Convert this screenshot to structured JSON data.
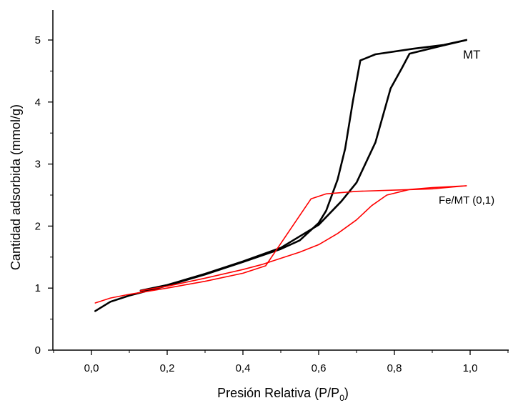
{
  "chart_data": {
    "type": "line",
    "xlabel_main": "Presión Relativa (P/P",
    "xlabel_sub": "0",
    "xlabel_close": ")",
    "ylabel": "Cantidad adsorbida (mmol/g)",
    "xlim": [
      -0.1,
      1.1
    ],
    "ylim": [
      0,
      5.5
    ],
    "x_ticks": [
      0.0,
      0.2,
      0.4,
      0.6,
      0.8,
      1.0
    ],
    "x_tick_labels": [
      "0,0",
      "0,2",
      "0,4",
      "0,6",
      "0,8",
      "1,0"
    ],
    "y_ticks": [
      0,
      1,
      2,
      3,
      4,
      5
    ],
    "y_tick_labels": [
      "0",
      "1",
      "2",
      "3",
      "4",
      "5"
    ],
    "grid": false,
    "series": [
      {
        "name": "MT",
        "color": "#000000",
        "segments": [
          {
            "x": [
              0.01,
              0.05,
              0.1,
              0.2,
              0.3,
              0.4,
              0.5,
              0.55,
              0.6,
              0.62,
              0.65,
              0.67,
              0.69,
              0.71,
              0.75,
              0.85,
              0.93,
              0.99
            ],
            "y": [
              0.63,
              0.78,
              0.88,
              1.04,
              1.22,
              1.42,
              1.63,
              1.77,
              2.05,
              2.25,
              2.75,
              3.25,
              4.0,
              4.67,
              4.77,
              4.86,
              4.92,
              5.0
            ]
          },
          {
            "x": [
              0.99,
              0.92,
              0.84,
              0.82,
              0.79,
              0.75,
              0.7,
              0.66,
              0.6,
              0.5,
              0.4,
              0.3,
              0.2,
              0.13
            ],
            "y": [
              5.0,
              4.9,
              4.78,
              4.55,
              4.22,
              3.35,
              2.7,
              2.4,
              2.02,
              1.65,
              1.43,
              1.23,
              1.05,
              0.96
            ]
          }
        ]
      },
      {
        "name": "Fe/MT (0,1)",
        "color": "#ff0000",
        "segments": [
          {
            "x": [
              0.01,
              0.05,
              0.1,
              0.2,
              0.3,
              0.4,
              0.46,
              0.52,
              0.58,
              0.62,
              0.7,
              0.8,
              0.9,
              0.99
            ],
            "y": [
              0.76,
              0.84,
              0.9,
              1.0,
              1.11,
              1.24,
              1.36,
              1.9,
              2.44,
              2.52,
              2.56,
              2.58,
              2.6,
              2.65
            ]
          },
          {
            "x": [
              0.99,
              0.9,
              0.84,
              0.78,
              0.74,
              0.7,
              0.65,
              0.6,
              0.55,
              0.5,
              0.45,
              0.4,
              0.3,
              0.2,
              0.13
            ],
            "y": [
              2.65,
              2.62,
              2.59,
              2.5,
              2.33,
              2.1,
              1.88,
              1.7,
              1.58,
              1.48,
              1.38,
              1.3,
              1.16,
              1.03,
              0.96
            ]
          }
        ]
      }
    ]
  }
}
